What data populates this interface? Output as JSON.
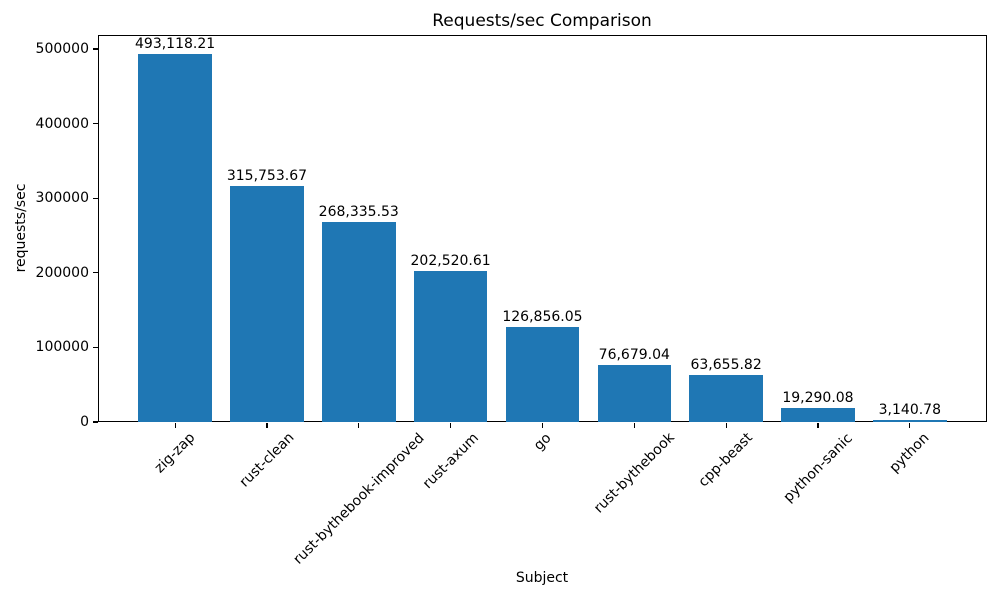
{
  "chart_data": {
    "type": "bar",
    "title": "Requests/sec Comparison",
    "xlabel": "Subject",
    "ylabel": "requests/sec",
    "categories": [
      "zig-zap",
      "rust-clean",
      "rust-bythebook-improved",
      "rust-axum",
      "go",
      "rust-bythebook",
      "cpp-beast",
      "python-sanic",
      "python"
    ],
    "values": [
      493118.21,
      315753.67,
      268335.53,
      202520.61,
      126856.05,
      76679.04,
      63655.82,
      19290.08,
      3140.78
    ],
    "bar_labels": [
      "493,118.21",
      "315,753.67",
      "268,335.53",
      "202,520.61",
      "126,856.05",
      "76,679.04",
      "63,655.82",
      "19,290.08",
      "3,140.78"
    ],
    "yticks": [
      0,
      100000,
      200000,
      300000,
      400000,
      500000
    ],
    "ytick_labels": [
      "0",
      "100000",
      "200000",
      "300000",
      "400000",
      "500000"
    ],
    "ylim": [
      0,
      500000
    ],
    "xtick_rotation": 45,
    "grid": false,
    "legend": false,
    "bar_color": "#1f77b4",
    "background_color": "#ffffff",
    "text_color": "#000000"
  }
}
